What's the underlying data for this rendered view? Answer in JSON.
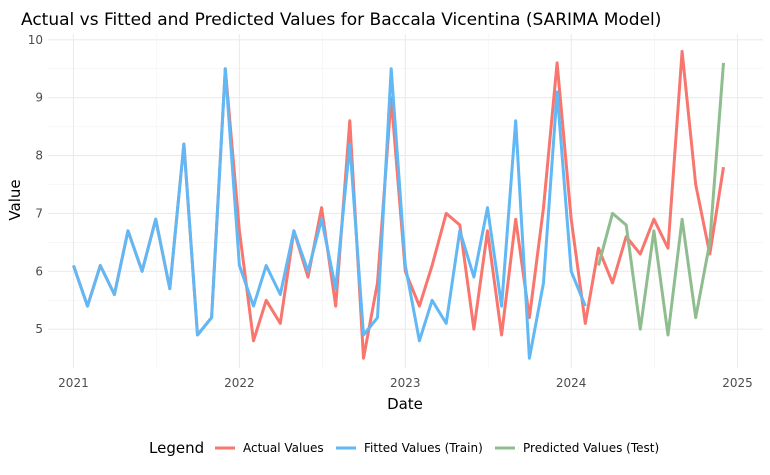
{
  "chart_data": {
    "type": "line",
    "title": "Actual vs Fitted and Predicted Values for Baccala Vicentina (SARIMA Model)",
    "xlabel": "Date",
    "ylabel": "Value",
    "xlim": [
      "2020-11-06",
      "2025-02-26"
    ],
    "ylim": [
      4.33,
      10.1
    ],
    "x_ticks": [
      "2021-01-01",
      "2022-01-01",
      "2023-01-01",
      "2024-01-01",
      "2025-01-01"
    ],
    "x_tick_labels": [
      "2021",
      "2022",
      "2023",
      "2024",
      "2025"
    ],
    "y_ticks": [
      5,
      6,
      7,
      8,
      9,
      10
    ],
    "y_tick_labels": [
      "5",
      "6",
      "7",
      "8",
      "9",
      "10"
    ],
    "grid": true,
    "legend": {
      "title": "Legend",
      "position": "bottom"
    },
    "series": [
      {
        "name": "Actual Values",
        "color": "#f8766d",
        "x": [
          "2021-01-01",
          "2021-02-01",
          "2021-03-01",
          "2021-04-01",
          "2021-05-01",
          "2021-06-01",
          "2021-07-01",
          "2021-08-01",
          "2021-09-01",
          "2021-10-01",
          "2021-11-01",
          "2021-12-01",
          "2022-01-01",
          "2022-02-01",
          "2022-03-01",
          "2022-04-01",
          "2022-05-01",
          "2022-06-01",
          "2022-07-01",
          "2022-08-01",
          "2022-09-01",
          "2022-10-01",
          "2022-11-01",
          "2022-12-01",
          "2023-01-01",
          "2023-02-01",
          "2023-03-01",
          "2023-04-01",
          "2023-05-01",
          "2023-06-01",
          "2023-07-01",
          "2023-08-01",
          "2023-09-01",
          "2023-10-01",
          "2023-11-01",
          "2023-12-01",
          "2024-01-01",
          "2024-02-01",
          "2024-03-01",
          "2024-04-01",
          "2024-05-01",
          "2024-06-01",
          "2024-07-01",
          "2024-08-01",
          "2024-09-01",
          "2024-10-01",
          "2024-11-01",
          "2024-12-01"
        ],
        "values": [
          6.1,
          5.4,
          6.1,
          5.6,
          6.7,
          6.0,
          6.9,
          5.7,
          8.2,
          4.9,
          5.2,
          9.5,
          6.7,
          4.8,
          5.5,
          5.1,
          6.7,
          5.9,
          7.1,
          5.4,
          8.6,
          4.5,
          5.8,
          9.0,
          6.0,
          5.4,
          6.1,
          7.0,
          6.8,
          5.0,
          6.7,
          4.9,
          6.9,
          5.2,
          7.1,
          9.6,
          6.9,
          5.1,
          6.4,
          5.8,
          6.6,
          6.3,
          6.9,
          6.4,
          9.8,
          7.5,
          6.3,
          7.8
        ]
      },
      {
        "name": "Fitted Values (Train)",
        "color": "#61b8f5",
        "x": [
          "2021-01-01",
          "2021-02-01",
          "2021-03-01",
          "2021-04-01",
          "2021-05-01",
          "2021-06-01",
          "2021-07-01",
          "2021-08-01",
          "2021-09-01",
          "2021-10-01",
          "2021-11-01",
          "2021-12-01",
          "2022-01-01",
          "2022-02-01",
          "2022-03-01",
          "2022-04-01",
          "2022-05-01",
          "2022-06-01",
          "2022-07-01",
          "2022-08-01",
          "2022-09-01",
          "2022-10-01",
          "2022-11-01",
          "2022-12-01",
          "2023-01-01",
          "2023-02-01",
          "2023-03-01",
          "2023-04-01",
          "2023-05-01",
          "2023-06-01",
          "2023-07-01",
          "2023-08-01",
          "2023-09-01",
          "2023-10-01",
          "2023-11-01",
          "2023-12-01",
          "2024-01-01",
          "2024-02-01"
        ],
        "values": [
          6.1,
          5.4,
          6.1,
          5.6,
          6.7,
          6.0,
          6.9,
          5.7,
          8.2,
          4.9,
          5.2,
          9.5,
          6.1,
          5.4,
          6.1,
          5.6,
          6.7,
          6.0,
          6.9,
          5.7,
          8.2,
          4.9,
          5.2,
          9.5,
          6.1,
          4.8,
          5.5,
          5.1,
          6.7,
          5.9,
          7.1,
          5.4,
          8.6,
          4.5,
          5.8,
          9.1,
          6.0,
          5.4
        ]
      },
      {
        "name": "Predicted Values (Test)",
        "color": "#8fbd8f",
        "x": [
          "2024-03-01",
          "2024-04-01",
          "2024-05-01",
          "2024-06-01",
          "2024-07-01",
          "2024-08-01",
          "2024-09-01",
          "2024-10-01",
          "2024-11-01",
          "2024-12-01"
        ],
        "values": [
          6.1,
          7.0,
          6.8,
          5.0,
          6.7,
          4.9,
          6.9,
          5.2,
          6.5,
          9.6
        ]
      }
    ]
  }
}
